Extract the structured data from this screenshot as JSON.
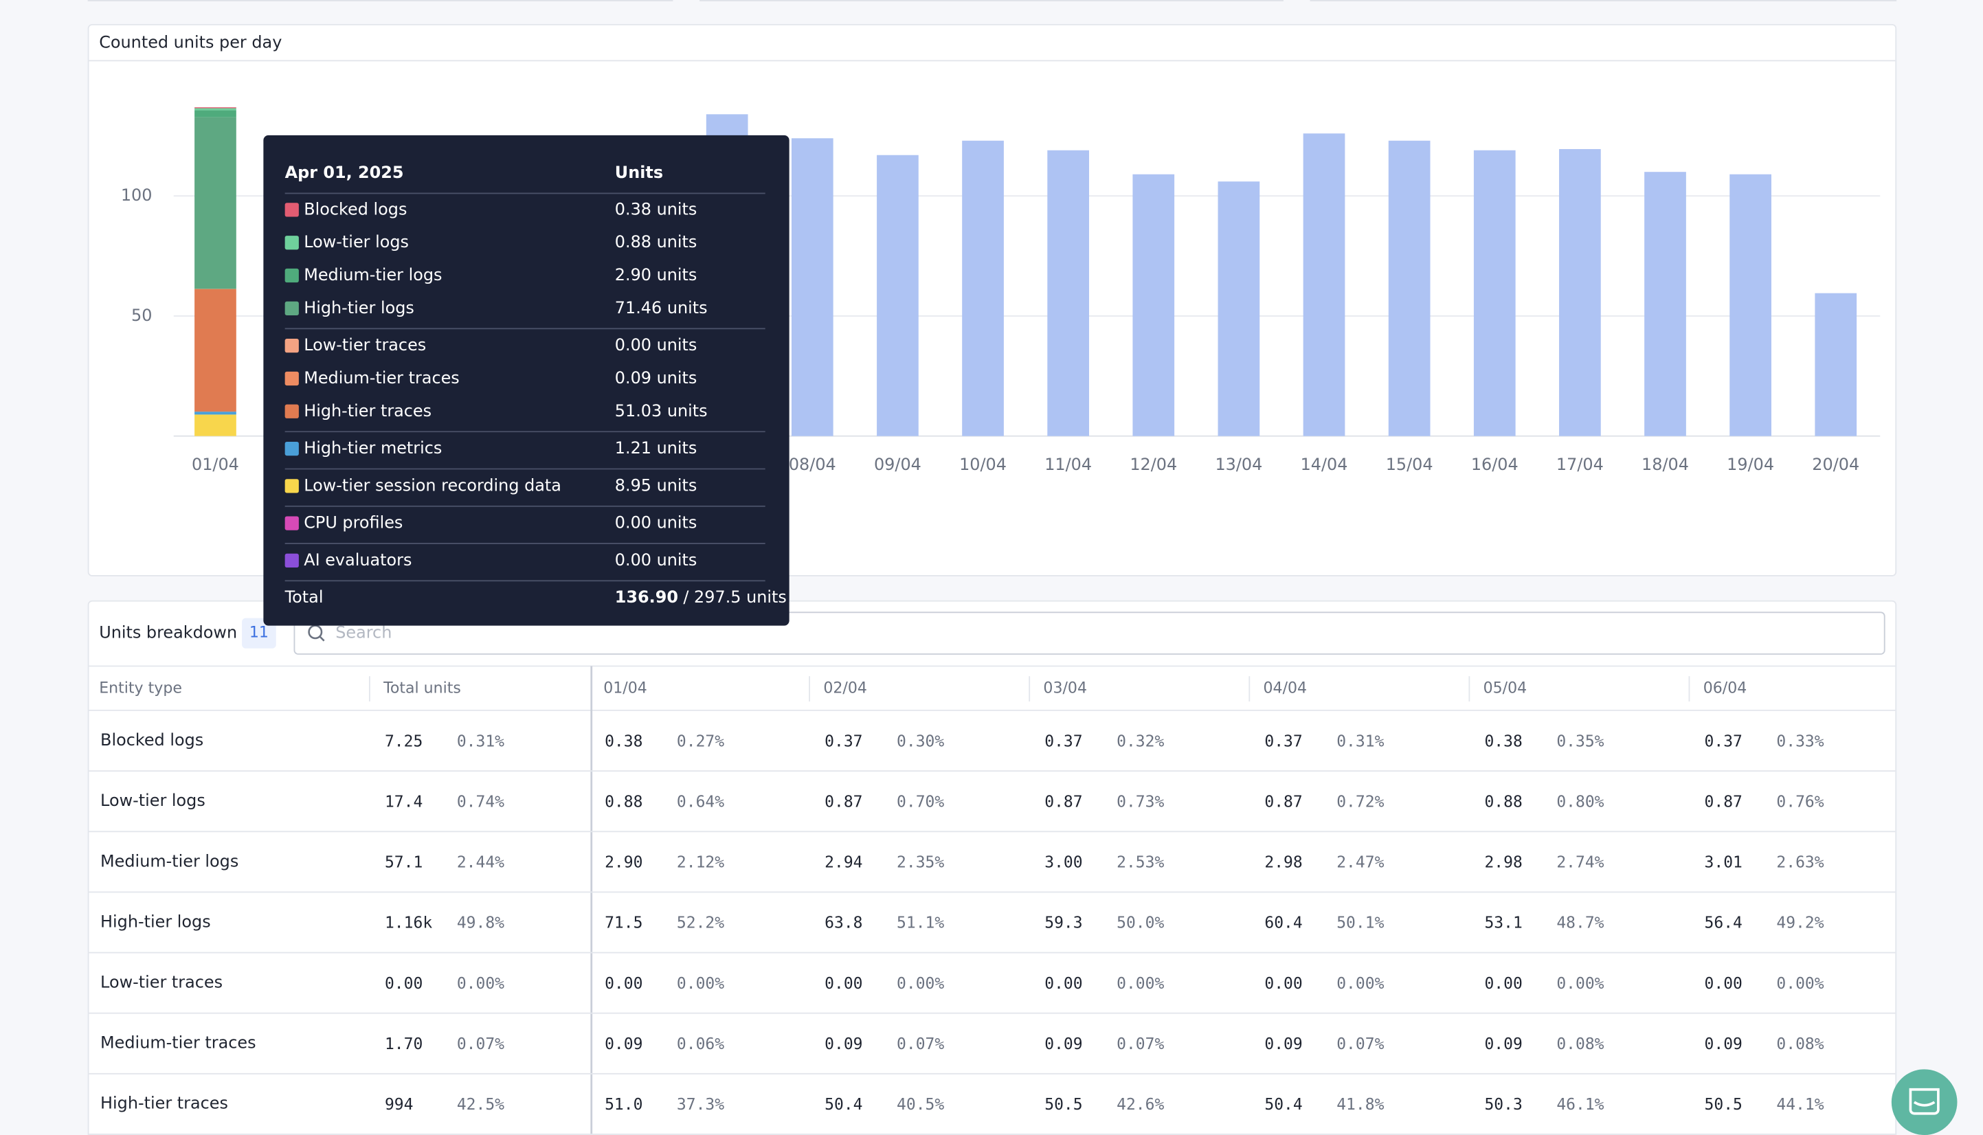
{
  "chart_data": {
    "type": "bar",
    "title": "Counted units per day",
    "categories": [
      "01/04",
      null,
      null,
      null,
      null,
      null,
      null,
      "08/04",
      "09/04",
      "10/04",
      "11/04",
      "12/04",
      "13/04",
      "14/04",
      "15/04",
      "16/04",
      "17/04",
      "18/04",
      "19/04",
      "20/04"
    ],
    "values": [
      null,
      null,
      null,
      null,
      null,
      null,
      134,
      124,
      117,
      123,
      119,
      109,
      106,
      126,
      123,
      119,
      119.5,
      110,
      109,
      59.5
    ],
    "color": "#aec3f3",
    "ylim": [
      0,
      150
    ],
    "yticks": [
      50,
      100
    ],
    "grid": true,
    "tooltip": {
      "title": "Apr 01, 2025",
      "header": "Units",
      "series": [
        {
          "name": "Blocked logs",
          "color": "#e25c72",
          "value": 0.38,
          "value_label": "0.38 units"
        },
        {
          "name": "Low-tier logs",
          "color": "#6fd09c",
          "value": 0.88,
          "value_label": "0.88 units"
        },
        {
          "name": "Medium-tier logs",
          "color": "#4fab7c",
          "value": 2.9,
          "value_label": "2.90 units"
        },
        {
          "name": "High-tier logs",
          "color": "#5ea882",
          "value": 71.46,
          "value_label": "71.46 units"
        },
        {
          "name": "Low-tier traces",
          "color": "#f4a383",
          "value": 0,
          "value_label": "0.00 units"
        },
        {
          "name": "Medium-tier traces",
          "color": "#ee8c62",
          "value": 0.09,
          "value_label": "0.09 units"
        },
        {
          "name": "High-tier traces",
          "color": "#e07b51",
          "value": 51.03,
          "value_label": "51.03 units"
        },
        {
          "name": "High-tier metrics",
          "color": "#4a9fd8",
          "value": 1.21,
          "value_label": "1.21 units"
        },
        {
          "name": "Low-tier session recording data",
          "color": "#f8d64c",
          "value": 8.95,
          "value_label": "8.95 units"
        },
        {
          "name": "CPU profiles",
          "color": "#d64ab7",
          "value": 0,
          "value_label": "0.00 units"
        },
        {
          "name": "AI evaluators",
          "color": "#8b4fd9",
          "value": 0,
          "value_label": "0.00 units"
        }
      ],
      "total_label": "Total",
      "total": "136.90",
      "limit_label": "/ 297.5 units"
    }
  },
  "table": {
    "title": "Units breakdown",
    "count": "11",
    "search_placeholder": "Search",
    "columns": [
      "Entity type",
      "Total units",
      "01/04",
      "02/04",
      "03/04",
      "04/04",
      "05/04",
      "06/04"
    ],
    "rows": [
      [
        "Blocked logs",
        [
          "7.25",
          "0.31%"
        ],
        [
          "0.38",
          "0.27%"
        ],
        [
          "0.37",
          "0.30%"
        ],
        [
          "0.37",
          "0.32%"
        ],
        [
          "0.37",
          "0.31%"
        ],
        [
          "0.38",
          "0.35%"
        ],
        [
          "0.37",
          "0.33%"
        ]
      ],
      [
        "Low-tier logs",
        [
          "17.4",
          "0.74%"
        ],
        [
          "0.88",
          "0.64%"
        ],
        [
          "0.87",
          "0.70%"
        ],
        [
          "0.87",
          "0.73%"
        ],
        [
          "0.87",
          "0.72%"
        ],
        [
          "0.88",
          "0.80%"
        ],
        [
          "0.87",
          "0.76%"
        ]
      ],
      [
        "Medium-tier logs",
        [
          "57.1",
          "2.44%"
        ],
        [
          "2.90",
          "2.12%"
        ],
        [
          "2.94",
          "2.35%"
        ],
        [
          "3.00",
          "2.53%"
        ],
        [
          "2.98",
          "2.47%"
        ],
        [
          "2.98",
          "2.74%"
        ],
        [
          "3.01",
          "2.63%"
        ]
      ],
      [
        "High-tier logs",
        [
          "1.16k",
          "49.8%"
        ],
        [
          "71.5",
          "52.2%"
        ],
        [
          "63.8",
          "51.1%"
        ],
        [
          "59.3",
          "50.0%"
        ],
        [
          "60.4",
          "50.1%"
        ],
        [
          "53.1",
          "48.7%"
        ],
        [
          "56.4",
          "49.2%"
        ]
      ],
      [
        "Low-tier traces",
        [
          "0.00",
          "0.00%"
        ],
        [
          "0.00",
          "0.00%"
        ],
        [
          "0.00",
          "0.00%"
        ],
        [
          "0.00",
          "0.00%"
        ],
        [
          "0.00",
          "0.00%"
        ],
        [
          "0.00",
          "0.00%"
        ],
        [
          "0.00",
          "0.00%"
        ]
      ],
      [
        "Medium-tier traces",
        [
          "1.70",
          "0.07%"
        ],
        [
          "0.09",
          "0.06%"
        ],
        [
          "0.09",
          "0.07%"
        ],
        [
          "0.09",
          "0.07%"
        ],
        [
          "0.09",
          "0.07%"
        ],
        [
          "0.09",
          "0.08%"
        ],
        [
          "0.09",
          "0.08%"
        ]
      ],
      [
        "High-tier traces",
        [
          "994",
          "42.5%"
        ],
        [
          "51.0",
          "37.3%"
        ],
        [
          "50.4",
          "40.5%"
        ],
        [
          "50.5",
          "42.6%"
        ],
        [
          "50.4",
          "41.8%"
        ],
        [
          "50.3",
          "46.1%"
        ],
        [
          "50.5",
          "44.1%"
        ]
      ]
    ]
  }
}
